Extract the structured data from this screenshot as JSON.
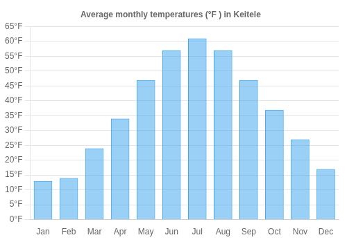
{
  "chart_data": {
    "type": "bar",
    "title": "Average monthly temperatures (°F ) in Keitele",
    "categories": [
      "Jan",
      "Feb",
      "Mar",
      "Apr",
      "May",
      "Jun",
      "Jul",
      "Aug",
      "Sep",
      "Oct",
      "Nov",
      "Dec"
    ],
    "values": [
      13,
      14,
      24,
      34,
      47,
      57,
      61,
      57,
      47,
      37,
      27,
      17
    ],
    "ylim": [
      0,
      65
    ],
    "yticks": [
      {
        "value": 0,
        "label": "0°F"
      },
      {
        "value": 5,
        "label": "5°F"
      },
      {
        "value": 10,
        "label": "10°F"
      },
      {
        "value": 15,
        "label": "15°F"
      },
      {
        "value": 20,
        "label": "20°F"
      },
      {
        "value": 25,
        "label": "25°F"
      },
      {
        "value": 30,
        "label": "30°F"
      },
      {
        "value": 35,
        "label": "35°F"
      },
      {
        "value": 40,
        "label": "40°F"
      },
      {
        "value": 45,
        "label": "45°F"
      },
      {
        "value": 50,
        "label": "50°F"
      },
      {
        "value": 55,
        "label": "55°F"
      },
      {
        "value": 60,
        "label": "60°F"
      },
      {
        "value": 65,
        "label": "65°F"
      }
    ],
    "grid": true
  }
}
